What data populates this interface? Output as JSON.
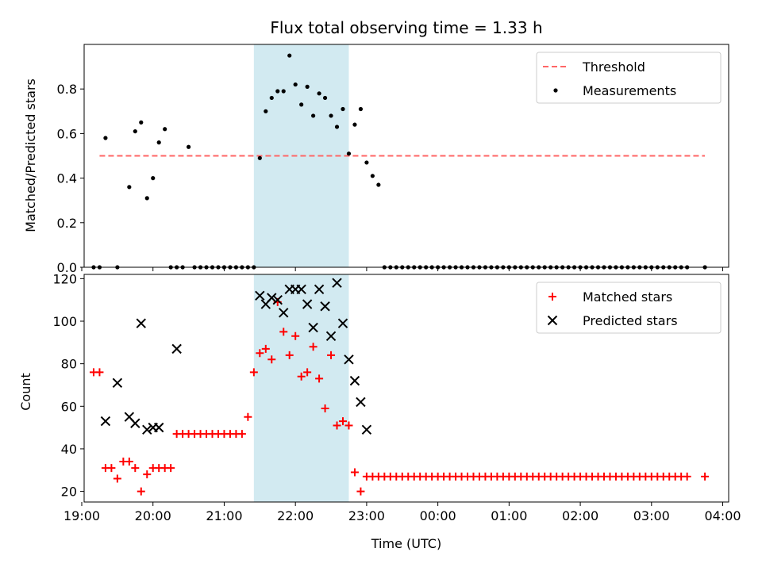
{
  "chart_data": [
    {
      "type": "scatter",
      "title": "Flux total observing time = 1.33 h",
      "ylabel": "Matched/Predicted stars",
      "xlabel": "",
      "xlim": [
        "19:02",
        "04:05"
      ],
      "ylim": [
        0,
        1.0
      ],
      "yticks": [
        "0.0",
        "0.2",
        "0.4",
        "0.6",
        "0.8"
      ],
      "ytick_values": [
        0,
        0.2,
        0.4,
        0.6,
        0.8
      ],
      "grid": false,
      "legend": "top-right",
      "shaded_region": [
        "21:25",
        "22:45"
      ],
      "shaded_color": "#add8e6",
      "series": [
        {
          "name": "Threshold",
          "style": "dashed-line",
          "color": "#ff6666",
          "x": [
            "19:15",
            "23:59+03:45"
          ],
          "x_text": [
            "19:15",
            "03:45"
          ],
          "y": [
            0.5,
            0.5
          ]
        },
        {
          "name": "Measurements",
          "style": "dot",
          "color": "#000000",
          "x": [
            "19:10",
            "19:15",
            "19:20",
            "19:30",
            "19:40",
            "19:45",
            "19:50",
            "19:55",
            "20:00",
            "20:05",
            "20:10",
            "20:15",
            "20:20",
            "20:25",
            "20:30",
            "20:35",
            "20:40",
            "20:45",
            "20:50",
            "20:55",
            "21:00",
            "21:05",
            "21:10",
            "21:15",
            "21:20",
            "21:25",
            "21:30",
            "21:35",
            "21:40",
            "21:45",
            "21:50",
            "21:55",
            "22:00",
            "22:05",
            "22:10",
            "22:15",
            "22:20",
            "22:25",
            "22:30",
            "22:35",
            "22:40",
            "22:45",
            "22:50",
            "22:55",
            "23:00",
            "23:05",
            "23:10",
            "23:15",
            "23:20",
            "23:25",
            "23:30",
            "23:35",
            "23:40",
            "23:45",
            "23:50",
            "23:55",
            "00:00",
            "00:05",
            "00:10",
            "00:15",
            "00:20",
            "00:25",
            "00:30",
            "00:35",
            "00:40",
            "00:45",
            "00:50",
            "00:55",
            "01:00",
            "01:05",
            "01:10",
            "01:15",
            "01:20",
            "01:25",
            "01:30",
            "01:35",
            "01:40",
            "01:45",
            "01:50",
            "01:55",
            "02:00",
            "02:05",
            "02:10",
            "02:15",
            "02:20",
            "02:25",
            "02:30",
            "02:35",
            "02:40",
            "02:45",
            "02:50",
            "02:55",
            "03:00",
            "03:05",
            "03:10",
            "03:15",
            "03:20",
            "03:25",
            "03:30",
            "03:45"
          ],
          "y": [
            0,
            0,
            0.58,
            0,
            0.36,
            0.61,
            0.65,
            0.31,
            0.4,
            0.56,
            0.62,
            0,
            0,
            0,
            0.54,
            0,
            0,
            0,
            0,
            0,
            0,
            0,
            0,
            0,
            0,
            0,
            0.49,
            0.7,
            0.76,
            0.79,
            0.79,
            0.95,
            0.82,
            0.73,
            0.81,
            0.68,
            0.78,
            0.76,
            0.68,
            0.63,
            0.71,
            0.51,
            0.64,
            0.71,
            0.47,
            0.41,
            0.37,
            0,
            0,
            0,
            0,
            0,
            0,
            0,
            0,
            0,
            0,
            0,
            0,
            0,
            0,
            0,
            0,
            0,
            0,
            0,
            0,
            0,
            0,
            0,
            0,
            0,
            0,
            0,
            0,
            0,
            0,
            0,
            0,
            0,
            0,
            0,
            0,
            0,
            0,
            0,
            0,
            0,
            0,
            0,
            0,
            0,
            0,
            0,
            0,
            0,
            0,
            0,
            0,
            0
          ]
        }
      ]
    },
    {
      "type": "scatter",
      "title": "",
      "ylabel": "Count",
      "xlabel": "Time (UTC)",
      "xlim": [
        "19:02",
        "04:05"
      ],
      "ylim": [
        15,
        122
      ],
      "yticks": [
        "20",
        "40",
        "60",
        "80",
        "100",
        "120"
      ],
      "ytick_values": [
        20,
        40,
        60,
        80,
        100,
        120
      ],
      "xticks": [
        "19:00",
        "20:00",
        "21:00",
        "22:00",
        "23:00",
        "00:00",
        "01:00",
        "02:00",
        "03:00",
        "04:00"
      ],
      "grid": false,
      "legend": "top-right",
      "shaded_region": [
        "21:25",
        "22:45"
      ],
      "shaded_color": "#add8e6",
      "series": [
        {
          "name": "Matched stars",
          "style": "plus",
          "color": "#ff0000",
          "x": [
            "19:10",
            "19:15",
            "19:20",
            "19:25",
            "19:30",
            "19:35",
            "19:40",
            "19:45",
            "19:50",
            "19:55",
            "20:00",
            "20:05",
            "20:10",
            "20:15",
            "20:20",
            "20:25",
            "20:30",
            "20:35",
            "20:40",
            "20:45",
            "20:50",
            "20:55",
            "21:00",
            "21:05",
            "21:10",
            "21:15",
            "21:20",
            "21:25",
            "21:30",
            "21:35",
            "21:40",
            "21:45",
            "21:50",
            "21:55",
            "22:00",
            "22:05",
            "22:10",
            "22:15",
            "22:20",
            "22:25",
            "22:30",
            "22:35",
            "22:40",
            "22:45",
            "22:50",
            "22:55",
            "23:00",
            "23:05",
            "23:10",
            "23:15",
            "23:20",
            "23:25",
            "23:30",
            "23:35",
            "23:40",
            "23:45",
            "23:50",
            "23:55",
            "00:00",
            "00:05",
            "00:10",
            "00:15",
            "00:20",
            "00:25",
            "00:30",
            "00:35",
            "00:40",
            "00:45",
            "00:50",
            "00:55",
            "01:00",
            "01:05",
            "01:10",
            "01:15",
            "01:20",
            "01:25",
            "01:30",
            "01:35",
            "01:40",
            "01:45",
            "01:50",
            "01:55",
            "02:00",
            "02:05",
            "02:10",
            "02:15",
            "02:20",
            "02:25",
            "02:30",
            "02:35",
            "02:40",
            "02:45",
            "02:50",
            "02:55",
            "03:00",
            "03:05",
            "03:10",
            "03:15",
            "03:20",
            "03:25",
            "03:30",
            "03:45"
          ],
          "y": [
            76,
            76,
            31,
            31,
            26,
            34,
            34,
            31,
            20,
            28,
            31,
            31,
            31,
            31,
            47,
            47,
            47,
            47,
            47,
            47,
            47,
            47,
            47,
            47,
            47,
            47,
            55,
            76,
            85,
            87,
            82,
            109,
            95,
            84,
            93,
            74,
            76,
            88,
            73,
            59,
            84,
            51,
            53,
            51,
            29,
            20,
            27,
            27,
            27,
            27,
            27,
            27,
            27,
            27,
            27,
            27,
            27,
            27,
            27,
            27,
            27,
            27,
            27,
            27,
            27,
            27,
            27,
            27,
            27,
            27,
            27,
            27,
            27,
            27,
            27,
            27,
            27,
            27,
            27,
            27,
            27,
            27,
            27,
            27,
            27,
            27,
            27,
            27,
            27,
            27,
            27,
            27,
            27,
            27,
            27,
            27,
            27,
            27,
            27,
            27,
            27,
            27
          ]
        },
        {
          "name": "Predicted stars",
          "style": "x",
          "color": "#000000",
          "x": [
            "19:20",
            "19:30",
            "19:40",
            "19:45",
            "19:50",
            "19:55",
            "20:00",
            "20:05",
            "20:20",
            "21:30",
            "21:35",
            "21:40",
            "21:45",
            "21:50",
            "21:55",
            "22:00",
            "22:05",
            "22:10",
            "22:15",
            "22:20",
            "22:25",
            "22:30",
            "22:35",
            "22:40",
            "22:45",
            "22:50",
            "22:55",
            "23:00"
          ],
          "y": [
            53,
            71,
            55,
            52,
            99,
            49,
            50,
            50,
            87,
            112,
            108,
            111,
            110,
            104,
            115,
            115,
            115,
            108,
            97,
            115,
            107,
            93,
            118,
            99,
            82,
            72,
            62,
            49
          ]
        }
      ]
    }
  ]
}
